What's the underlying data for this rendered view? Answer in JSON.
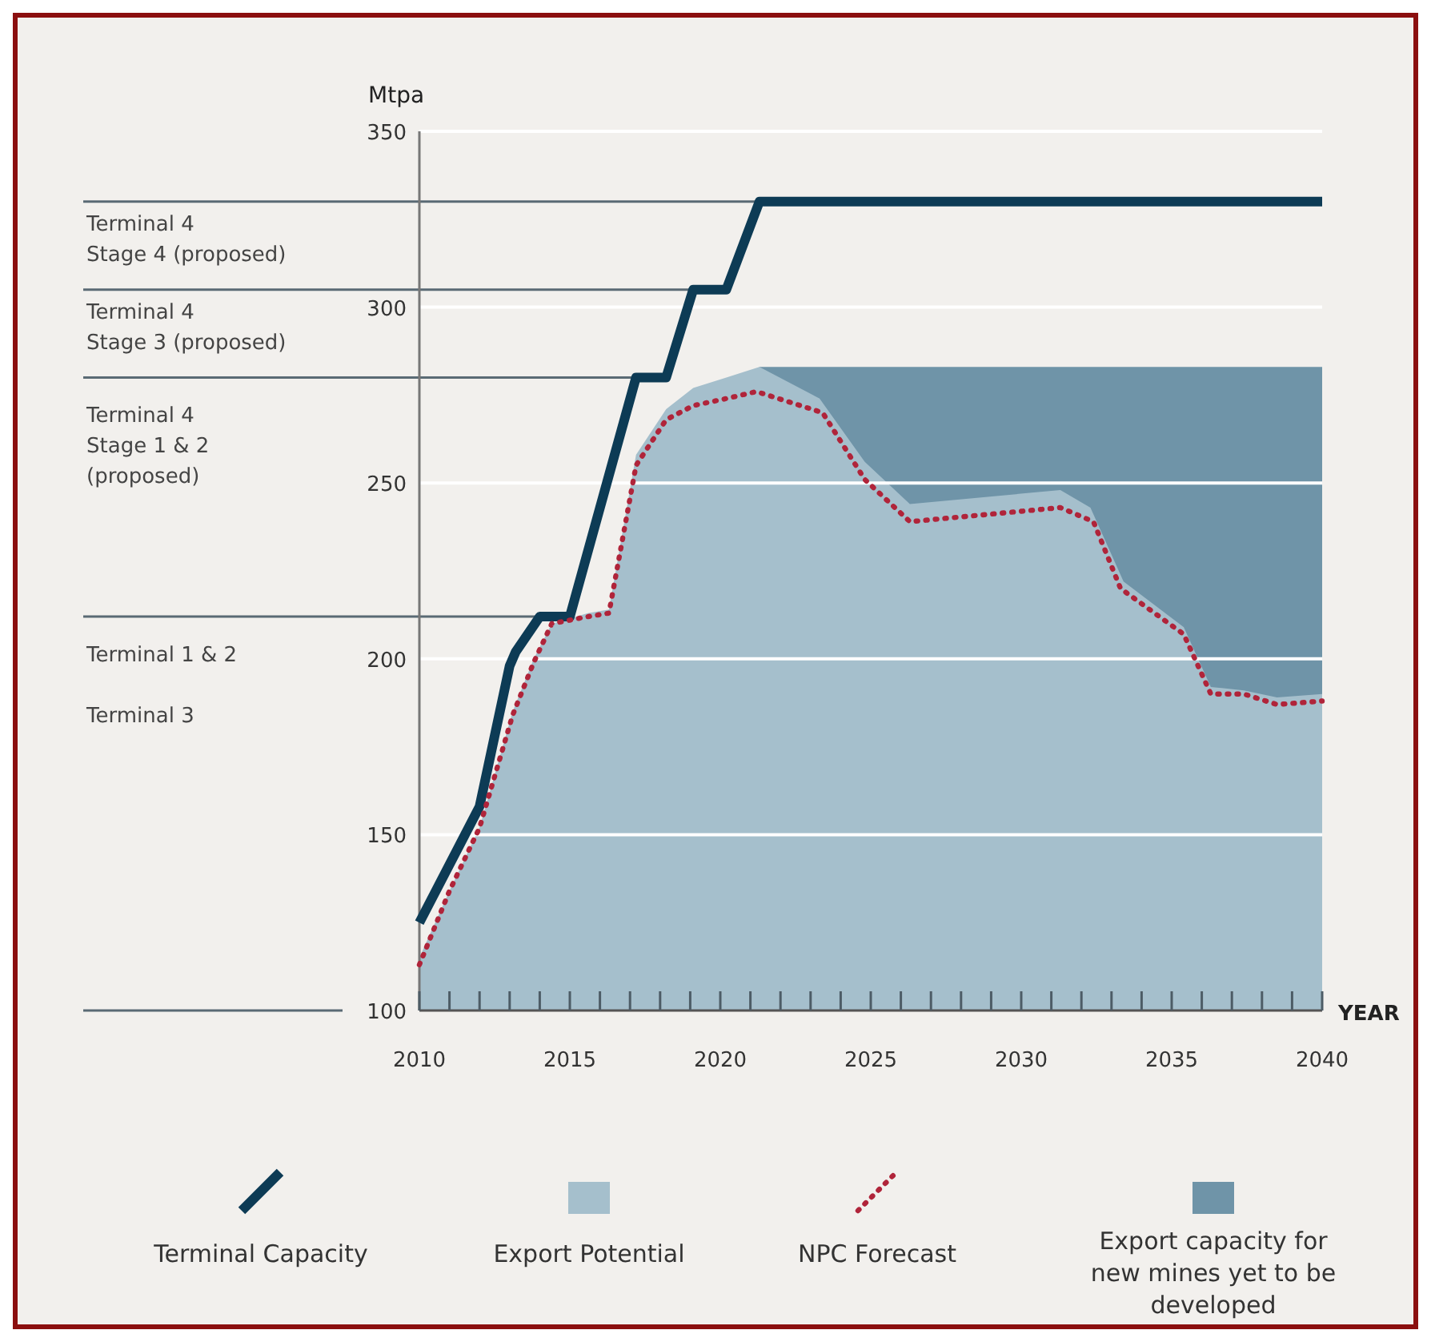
{
  "chart_data": {
    "type": "line",
    "ylabel": "Mtpa",
    "xlabel": "YEAR",
    "xlim": [
      2010,
      2040
    ],
    "ylim": [
      100,
      350
    ],
    "xticks": [
      2010,
      {
        "value": 2011,
        "label": null
      },
      {
        "value": 2012,
        "label": null
      },
      {
        "value": 2013,
        "label": null
      },
      {
        "value": 2014,
        "label": null
      },
      2015,
      {
        "value": 2016,
        "label": null
      },
      {
        "value": 2017,
        "label": null
      },
      {
        "value": 2018,
        "label": null
      },
      {
        "value": 2019,
        "label": null
      },
      2020,
      {
        "value": 2021,
        "label": null
      },
      {
        "value": 2022,
        "label": null
      },
      {
        "value": 2023,
        "label": null
      },
      {
        "value": 2024,
        "label": null
      },
      2025,
      {
        "value": 2026,
        "label": null
      },
      {
        "value": 2027,
        "label": null
      },
      {
        "value": 2028,
        "label": null
      },
      {
        "value": 2029,
        "label": null
      },
      2030,
      {
        "value": 2031,
        "label": null
      },
      {
        "value": 2032,
        "label": null
      },
      {
        "value": 2033,
        "label": null
      },
      {
        "value": 2034,
        "label": null
      },
      2035,
      {
        "value": 2036,
        "label": null
      },
      {
        "value": 2037,
        "label": null
      },
      {
        "value": 2038,
        "label": null
      },
      {
        "value": 2039,
        "label": null
      },
      2040
    ],
    "yticks": [
      100,
      150,
      200,
      250,
      300,
      350
    ],
    "grid": "y",
    "legend": "bottom",
    "series": [
      {
        "name": "Export capacity for new mines yet to be developed",
        "type": "area",
        "color": "#6f94a8",
        "x": [
          2021.3,
          2040
        ],
        "values": [
          283,
          283
        ]
      },
      {
        "name": "Export Potential",
        "type": "area",
        "color": "#a5bfcc",
        "x": [
          2010,
          2011,
          2012,
          2013.1,
          2013.8,
          2014.4,
          2015.6,
          2016.3,
          2017.2,
          2018.2,
          2019.1,
          2020.2,
          2021.3,
          2023.3,
          2024.8,
          2026.3,
          2031.3,
          2032.3,
          2033.4,
          2035.4,
          2036.3,
          2037.4,
          2038.5,
          2040
        ],
        "values": [
          115,
          134,
          152,
          185,
          200,
          210,
          213,
          214,
          258,
          271,
          277,
          280,
          283,
          274,
          256,
          244,
          248,
          243,
          222,
          209,
          192,
          191,
          189,
          190
        ]
      },
      {
        "name": "Terminal Capacity",
        "color": "#0d3b55",
        "x": [
          2010,
          2012,
          2013,
          2013.2,
          2014,
          2015,
          2017.2,
          2018.2,
          2019.1,
          2020.2,
          2021.3,
          2040
        ],
        "values": [
          125,
          158,
          198,
          202,
          212,
          212,
          280,
          280,
          305,
          305,
          330,
          330
        ]
      },
      {
        "name": "NPC Forecast",
        "line_style": "dotted",
        "color": "#b0243a",
        "x": [
          2010,
          2011,
          2012,
          2013.1,
          2013.8,
          2014.4,
          2015.6,
          2016.3,
          2017.2,
          2018.2,
          2019.1,
          2020.2,
          2021.2,
          2023.4,
          2024.8,
          2026.3,
          2031.3,
          2032.4,
          2033.3,
          2035.4,
          2036.3,
          2037.4,
          2038.5,
          2040
        ],
        "values": [
          113,
          134,
          152,
          184,
          199,
          210,
          212,
          213,
          255,
          268,
          272,
          274,
          276,
          270,
          251,
          239,
          243,
          239,
          220,
          207,
          190,
          190,
          187,
          188
        ]
      }
    ],
    "ref_lines": [
      {
        "axis": "y",
        "value": 330,
        "color": "#5a6a74",
        "label": "Terminal 4\nStage 4 (proposed)"
      },
      {
        "axis": "y",
        "value": 305,
        "color": "#5a6a74",
        "label": "Terminal 4\nStage 3 (proposed)"
      },
      {
        "axis": "y",
        "value": 280,
        "color": "#5a6a74",
        "label": "Terminal 4\nStage 1 & 2\n(proposed)"
      },
      {
        "axis": "y",
        "value": 212,
        "color": "#5a6a74",
        "label": "Terminal 1 & 2\n\nTerminal 3"
      }
    ]
  }
}
